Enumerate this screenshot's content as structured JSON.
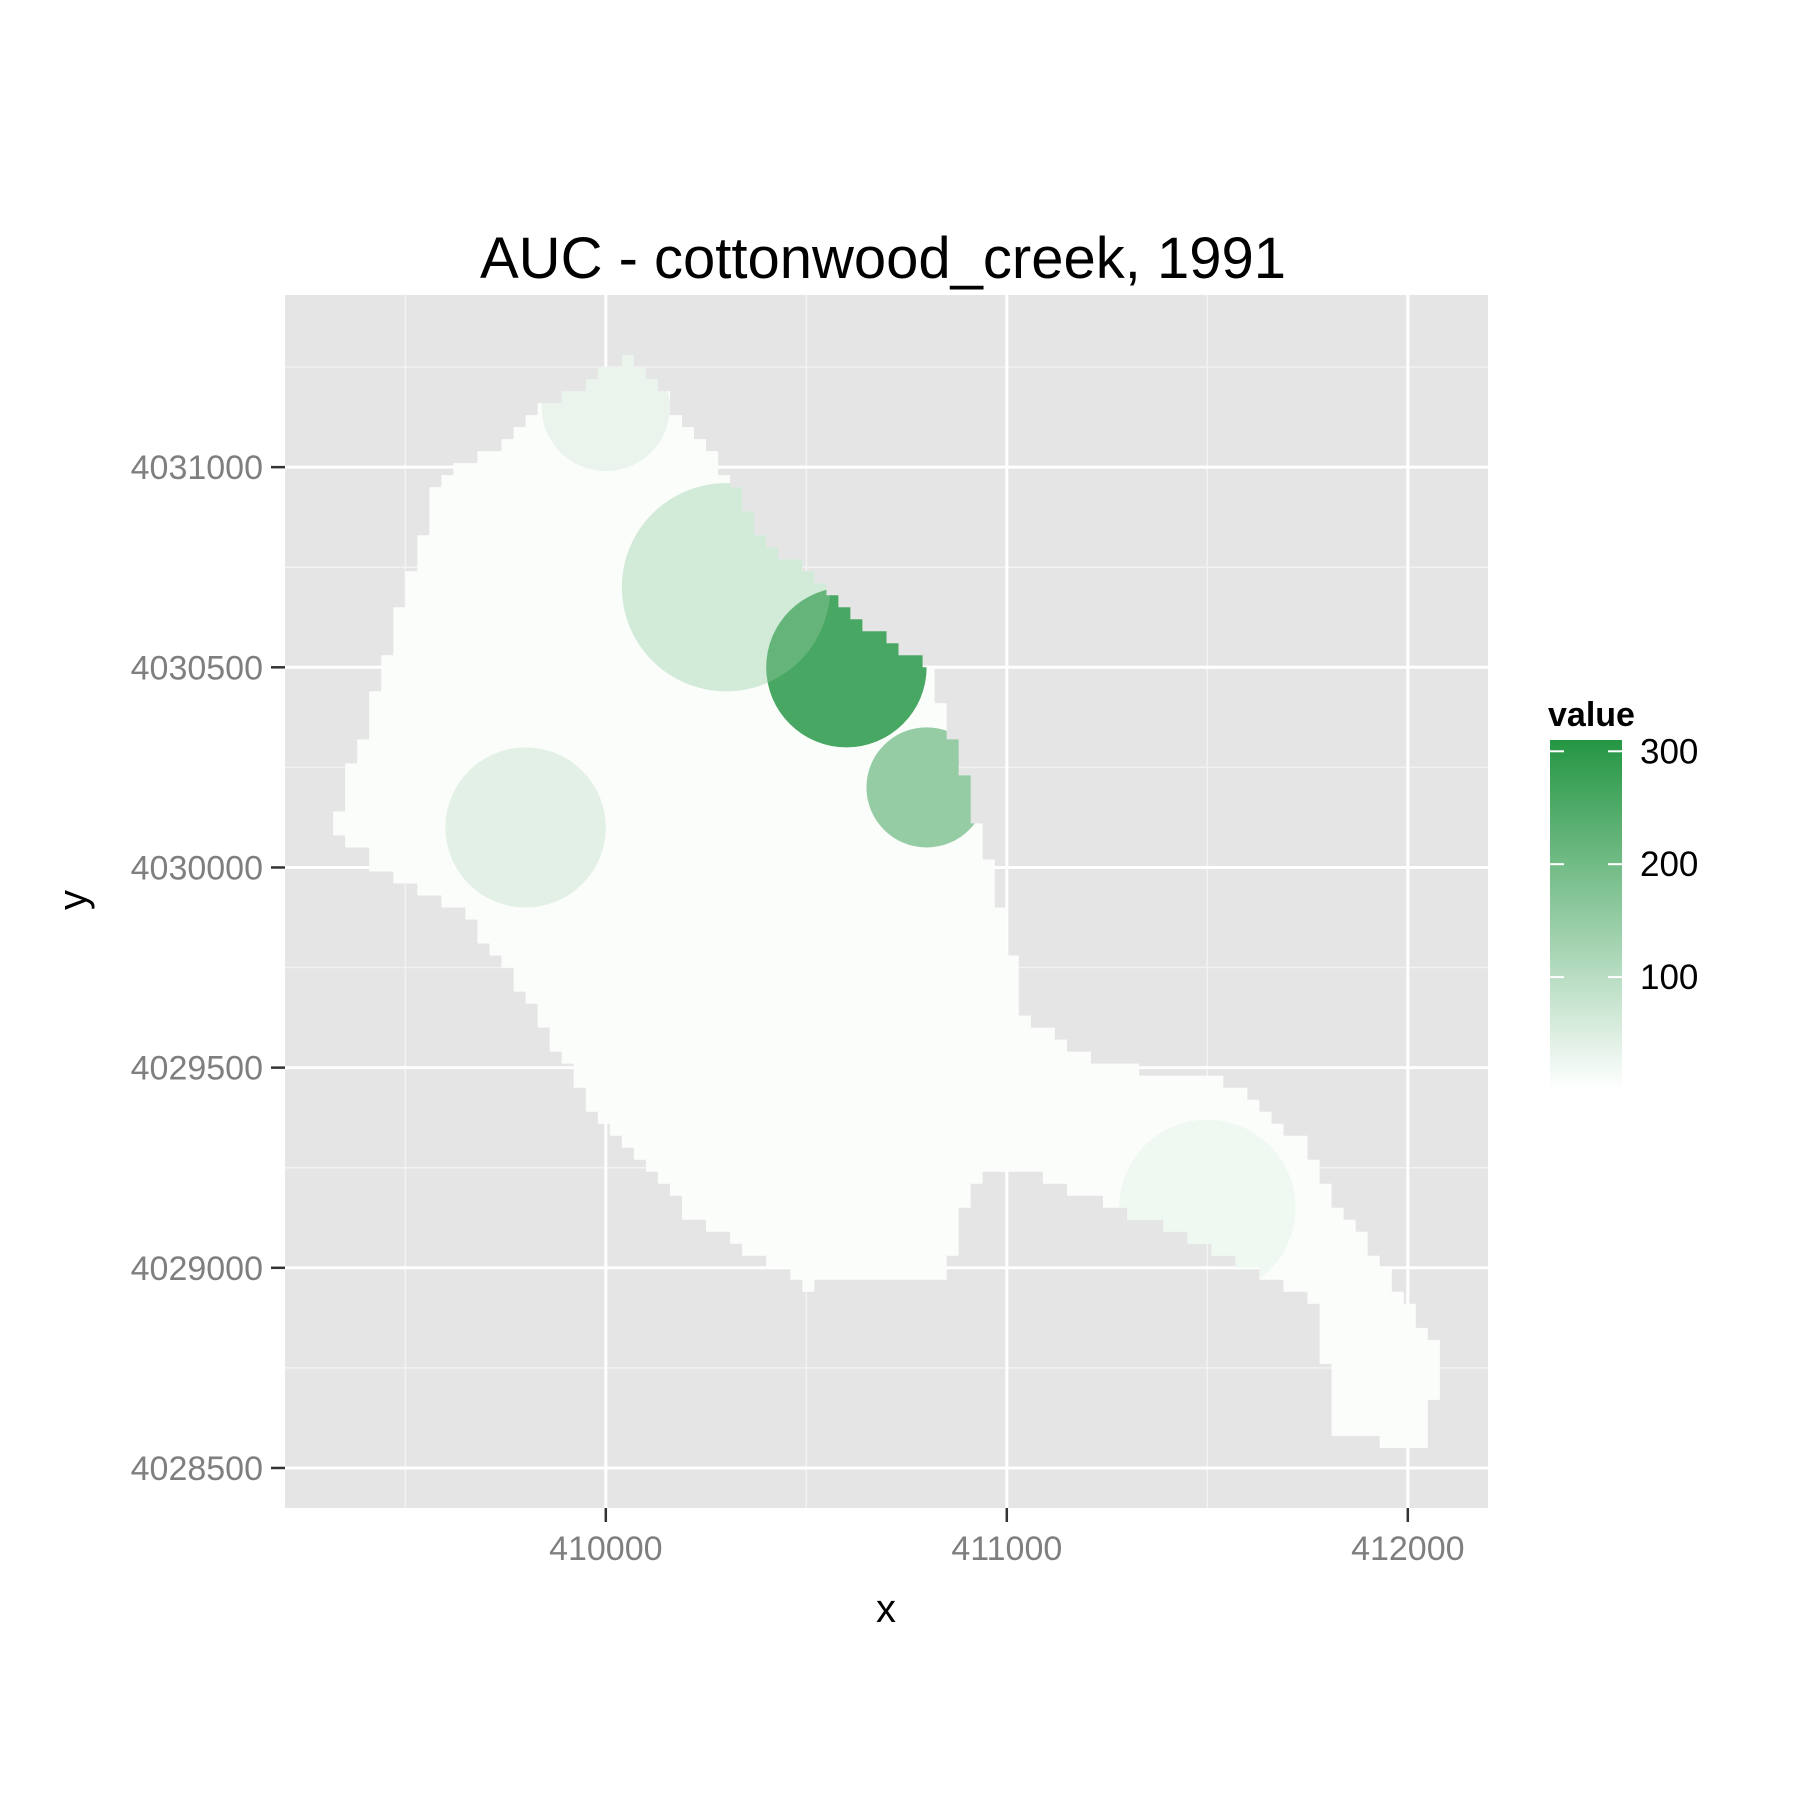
{
  "chart_data": {
    "type": "heatmap",
    "title": "AUC - cottonwood_creek, 1991",
    "xlabel": "x",
    "ylabel": "y",
    "xlim": [
      409200,
      412200
    ],
    "ylim": [
      4028400,
      4031430
    ],
    "x_ticks": [
      410000,
      411000,
      412000
    ],
    "x_tick_labels": [
      "410000",
      "411000",
      "412000"
    ],
    "y_ticks": [
      4028500,
      4029000,
      4029500,
      4030000,
      4030500,
      4031000
    ],
    "y_tick_labels": [
      "4028500",
      "4029000",
      "4029500",
      "4030000",
      "4030500",
      "4031000"
    ],
    "x_minor_ticks": [
      409500,
      410500,
      411500
    ],
    "y_minor_ticks": [
      4028750,
      4029250,
      4029750,
      4030250,
      4030750,
      4031250
    ],
    "grid": true,
    "cell_size": 30,
    "legend": {
      "title": "value",
      "position": "right",
      "breaks": [
        100,
        200,
        300
      ],
      "break_labels": [
        "100",
        "200",
        "300"
      ],
      "min": 0,
      "max": 310,
      "low_color": "#ffffff",
      "high_color": "#249643"
    },
    "colors": {
      "panel_background": "#e5e5e5",
      "grid_major": "#ffffff",
      "grid_minor": "#f2f2f2"
    },
    "region_outline": [
      [
        409320,
        4030100
      ],
      [
        409580,
        4030980
      ],
      [
        409960,
        4031220
      ],
      [
        410040,
        4031280
      ],
      [
        410250,
        4031050
      ],
      [
        410400,
        4030800
      ],
      [
        410650,
        4030600
      ],
      [
        410800,
        4030500
      ],
      [
        410900,
        4030200
      ],
      [
        410980,
        4029900
      ],
      [
        411050,
        4029600
      ],
      [
        411250,
        4029500
      ],
      [
        411500,
        4029480
      ],
      [
        411730,
        4029320
      ],
      [
        411820,
        4029150
      ],
      [
        411930,
        4029000
      ],
      [
        412070,
        4028800
      ],
      [
        412060,
        4028540
      ],
      [
        411820,
        4028600
      ],
      [
        411780,
        4028920
      ],
      [
        411550,
        4029040
      ],
      [
        411300,
        4029140
      ],
      [
        411100,
        4029230
      ],
      [
        410950,
        4029240
      ],
      [
        410900,
        4029150
      ],
      [
        410850,
        4028980
      ],
      [
        410500,
        4028950
      ],
      [
        410400,
        4029020
      ],
      [
        410200,
        4029150
      ],
      [
        409980,
        4029400
      ],
      [
        409800,
        4029680
      ],
      [
        409650,
        4029900
      ],
      [
        409450,
        4030000
      ],
      [
        409320,
        4030100
      ]
    ],
    "hotspots": [
      {
        "x": 410600,
        "y": 4030500,
        "value": 150,
        "radius": 200
      },
      {
        "x": 410800,
        "y": 4030200,
        "value": 110,
        "radius": 150
      },
      {
        "x": 410300,
        "y": 4030700,
        "value": 70,
        "radius": 260
      },
      {
        "x": 409800,
        "y": 4030100,
        "value": 55,
        "radius": 200
      },
      {
        "x": 410000,
        "y": 4031150,
        "value": 45,
        "radius": 160
      },
      {
        "x": 411500,
        "y": 4029150,
        "value": 35,
        "radius": 220
      }
    ]
  }
}
